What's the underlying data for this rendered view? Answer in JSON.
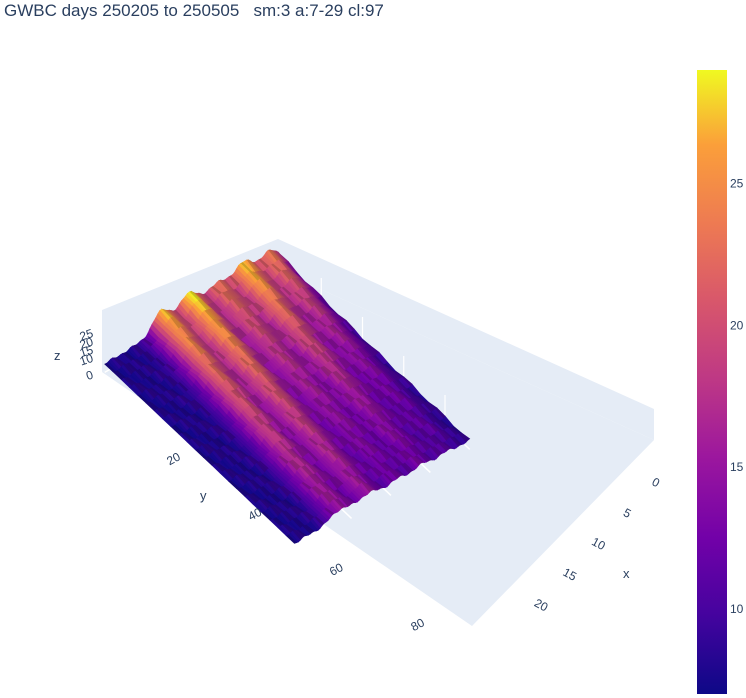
{
  "chart_data": {
    "type": "surface",
    "title": "GWBC days 250205 to 250505   sm:3 a:7-29 cl:97",
    "axes": {
      "x": {
        "title": "x",
        "range": [
          0,
          23
        ],
        "ticks": [
          "0",
          "5",
          "10",
          "15",
          "20"
        ]
      },
      "y": {
        "title": "y",
        "range": [
          0,
          89
        ],
        "ticks": [
          "20",
          "40",
          "60",
          "80"
        ]
      },
      "z": {
        "title": "z",
        "range": [
          0,
          29
        ],
        "ticks": [
          "0",
          "10",
          "15",
          "20",
          "25"
        ]
      }
    },
    "colorbar": {
      "colorscale": "plasma",
      "min": 7,
      "max": 29,
      "ticks": [
        "10",
        "15",
        "20",
        "25"
      ]
    },
    "ridges": [
      {
        "y": 6,
        "z_peak": 24
      },
      {
        "y": 19,
        "z_peak": 28
      },
      {
        "y": 32,
        "z_peak": 23
      },
      {
        "y": 46,
        "z_peak": 29
      },
      {
        "y": 60,
        "z_peak": 27
      }
    ],
    "grid": true
  }
}
